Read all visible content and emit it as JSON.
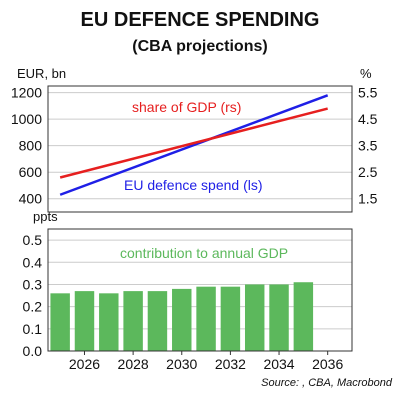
{
  "title": "EU DEFENCE SPENDING",
  "subtitle": "(CBA projections)",
  "source": "Source: , CBA, Macrobond",
  "colors": {
    "spend": "#1f1fe6",
    "share": "#e61f1f",
    "bars": "#5cb85c",
    "grid": "#cccccc",
    "frame": "#333333",
    "text": "#111111"
  },
  "chart_data": [
    {
      "type": "line",
      "left_axis_label": "EUR, bn",
      "right_axis_label": "%",
      "left_ylim": [
        300,
        1250
      ],
      "right_ylim": [
        1.0,
        5.75
      ],
      "left_ticks": [
        "1200",
        "1000",
        "800",
        "600",
        "400"
      ],
      "left_tick_values": [
        1200,
        1000,
        800,
        600,
        400
      ],
      "right_ticks": [
        "5.5",
        "4.5",
        "3.5",
        "2.5",
        "1.5"
      ],
      "right_tick_values": [
        5.5,
        4.5,
        3.5,
        2.5,
        1.5
      ],
      "series": [
        {
          "name": "EU defence spend (ls)",
          "axis": "left",
          "color": "#1f1fe6",
          "x": [
            2025,
            2036
          ],
          "values": [
            430,
            1180
          ]
        },
        {
          "name": "share of GDP (rs)",
          "axis": "right",
          "color": "#e61f1f",
          "x": [
            2025,
            2036
          ],
          "values": [
            2.3,
            4.9
          ]
        }
      ],
      "grid": true
    },
    {
      "type": "bar",
      "ylabel": "ppts",
      "ylim": [
        0,
        0.55
      ],
      "y_ticks": [
        "0.5",
        "0.4",
        "0.3",
        "0.2",
        "0.1",
        "0.0"
      ],
      "y_tick_values": [
        0.5,
        0.4,
        0.3,
        0.2,
        0.1,
        0.0
      ],
      "categories": [
        2025,
        2026,
        2027,
        2028,
        2029,
        2030,
        2031,
        2032,
        2033,
        2034,
        2035
      ],
      "series": [
        {
          "name": "contribution to annual GDP",
          "color": "#5cb85c",
          "values": [
            0.26,
            0.27,
            0.26,
            0.27,
            0.27,
            0.28,
            0.29,
            0.29,
            0.3,
            0.3,
            0.31
          ]
        }
      ],
      "grid": true
    }
  ],
  "x_axis": {
    "ticks": [
      "2026",
      "2028",
      "2030",
      "2032",
      "2034",
      "2036"
    ],
    "tick_values": [
      2026,
      2028,
      2030,
      2032,
      2034,
      2036
    ],
    "xlim": [
      2024.5,
      2037
    ]
  }
}
